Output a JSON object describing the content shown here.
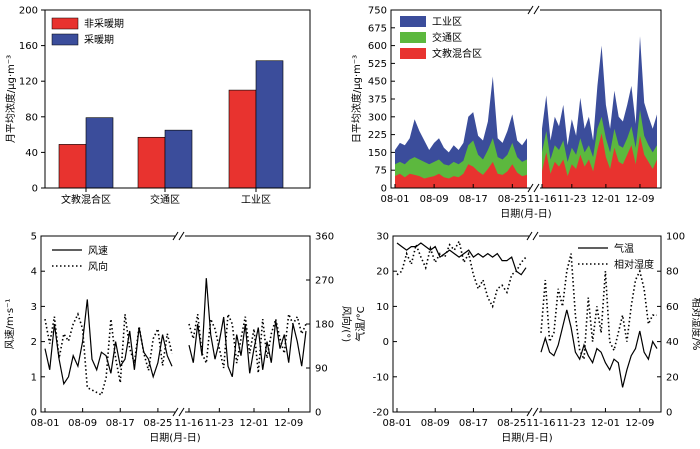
{
  "chart_data": [
    {
      "type": "bar",
      "ylabel": "月平均浓度/μg·m⁻³",
      "ylim": [
        0,
        200
      ],
      "yticks": [
        "0",
        "40",
        "80",
        "120",
        "160",
        "200"
      ],
      "categories": [
        "文教混合区",
        "交通区",
        "工业区"
      ],
      "legend_position": "top-left",
      "series": [
        {
          "name": "非采暖期",
          "color": "#e8332f",
          "values": [
            49,
            57,
            110
          ]
        },
        {
          "name": "采暖期",
          "color": "#3b4d9b",
          "values": [
            79,
            65,
            143
          ]
        }
      ]
    },
    {
      "type": "area",
      "ylabel": "日平均浓度/μg·m⁻³",
      "xlabel": "日期(月-日)",
      "ylim": [
        0,
        750
      ],
      "yticks": [
        "0",
        "75",
        "150",
        "225",
        "300",
        "375",
        "450",
        "525",
        "600",
        "675",
        "750"
      ],
      "xticks": [
        "08-01",
        "08-09",
        "08-17",
        "08-25",
        "11-16",
        "11-23",
        "12-01",
        "12-09"
      ],
      "legend_position": "top-left",
      "series": [
        {
          "name": "工业区",
          "color": "#3b4d9b",
          "values_part1": [
            160,
            190,
            180,
            210,
            290,
            240,
            200,
            160,
            190,
            210,
            170,
            150,
            180,
            160,
            190,
            300,
            320,
            220,
            200,
            280,
            470,
            210,
            190,
            240,
            310,
            200,
            180,
            210
          ],
          "values_part2": [
            250,
            390,
            200,
            300,
            260,
            350,
            180,
            290,
            220,
            380,
            250,
            300,
            200,
            430,
            600,
            350,
            250,
            410,
            300,
            280,
            350,
            430,
            270,
            640,
            360,
            300,
            250,
            310
          ]
        },
        {
          "name": "交通区",
          "color": "#5cb83e",
          "values_part1": [
            100,
            110,
            100,
            120,
            130,
            120,
            110,
            100,
            110,
            120,
            100,
            95,
            110,
            100,
            115,
            180,
            200,
            140,
            120,
            160,
            210,
            130,
            120,
            140,
            190,
            130,
            110,
            120
          ],
          "values_part2": [
            150,
            240,
            120,
            180,
            160,
            200,
            110,
            170,
            140,
            210,
            150,
            180,
            130,
            250,
            300,
            210,
            150,
            250,
            180,
            170,
            210,
            260,
            170,
            330,
            220,
            180,
            150,
            180
          ]
        },
        {
          "name": "文教混合区",
          "color": "#e8332f",
          "values_part1": [
            50,
            60,
            45,
            60,
            55,
            50,
            40,
            45,
            50,
            60,
            45,
            40,
            50,
            45,
            60,
            100,
            90,
            70,
            55,
            80,
            110,
            60,
            55,
            70,
            100,
            65,
            50,
            55
          ],
          "values_part2": [
            70,
            150,
            60,
            110,
            90,
            120,
            50,
            100,
            80,
            140,
            90,
            120,
            70,
            160,
            230,
            130,
            80,
            170,
            110,
            100,
            140,
            180,
            100,
            220,
            140,
            110,
            80,
            120
          ]
        }
      ]
    },
    {
      "type": "line",
      "xlabel": "日期(月-日)",
      "ylabel_left": "风速/m·s⁻¹",
      "ylabel_right": "风向/(°)",
      "ylim_left": [
        0,
        5
      ],
      "ylim_right": [
        0,
        360
      ],
      "yticks_left": [
        "0",
        "1",
        "2",
        "3",
        "4",
        "5"
      ],
      "yticks_right": [
        "0",
        "90",
        "180",
        "270",
        "360"
      ],
      "xticks": [
        "08-01",
        "08-09",
        "08-17",
        "08-25",
        "11-16",
        "11-23",
        "12-01",
        "12-09"
      ],
      "legend_position": "top-left",
      "series": [
        {
          "name": "风速",
          "axis": "left",
          "style": "solid",
          "values_part1": [
            1.8,
            1.2,
            2.5,
            1.5,
            0.8,
            1.0,
            1.6,
            1.3,
            2.0,
            3.2,
            1.5,
            1.2,
            1.7,
            1.6,
            1.1,
            2.0,
            1.3,
            1.5,
            2.3,
            1.2,
            2.4,
            1.7,
            1.5,
            1.0,
            1.4,
            2.2,
            1.6,
            1.3
          ],
          "values_part2": [
            1.9,
            1.4,
            2.5,
            1.6,
            3.8,
            2.2,
            1.5,
            2.0,
            2.7,
            1.3,
            1.0,
            2.2,
            1.6,
            2.5,
            1.1,
            1.8,
            2.4,
            1.2,
            2.0,
            1.4,
            2.6,
            1.8,
            2.2,
            1.4,
            2.5,
            2.0,
            1.3,
            2.3
          ]
        },
        {
          "name": "风向",
          "axis": "right",
          "style": "dotted",
          "values_part1": [
            190,
            140,
            195,
            110,
            160,
            145,
            180,
            200,
            170,
            50,
            45,
            40,
            35,
            70,
            190,
            110,
            60,
            200,
            130,
            100,
            175,
            120,
            85,
            150,
            170,
            95,
            160,
            120
          ],
          "values_part2": [
            180,
            150,
            200,
            120,
            100,
            190,
            170,
            130,
            90,
            200,
            180,
            100,
            150,
            195,
            120,
            170,
            80,
            190,
            110,
            160,
            190,
            150,
            120,
            200,
            180,
            195,
            160,
            180
          ]
        }
      ]
    },
    {
      "type": "line",
      "xlabel": "日期(月-日)",
      "ylabel_left": "气温/°C",
      "ylabel_right": "相对湿度/%",
      "ylim_left": [
        -20,
        30
      ],
      "ylim_right": [
        0,
        100
      ],
      "yticks_left": [
        "-20",
        "-10",
        "0",
        "10",
        "20",
        "30"
      ],
      "yticks_right": [
        "0",
        "20",
        "40",
        "60",
        "80",
        "100"
      ],
      "xticks": [
        "08-01",
        "08-09",
        "08-17",
        "08-25",
        "11-16",
        "11-23",
        "12-01",
        "12-09"
      ],
      "legend_position": "top-right",
      "series": [
        {
          "name": "气温",
          "axis": "left",
          "style": "solid",
          "values_part1": [
            28,
            27,
            26,
            27,
            27,
            28,
            27,
            26,
            27,
            24,
            25,
            26,
            25,
            24,
            25,
            26,
            24,
            25,
            24,
            25,
            24,
            25,
            23,
            23,
            24,
            20,
            19,
            21
          ],
          "values_part2": [
            -3,
            1,
            -3,
            -4,
            -1,
            4,
            9,
            4,
            -3,
            -5,
            -1,
            -4,
            -6,
            -2,
            -3,
            -6,
            -8,
            -5,
            -6,
            -13,
            -8,
            -4,
            -2,
            3,
            -3,
            -5,
            0,
            -2
          ]
        },
        {
          "name": "相对湿度",
          "axis": "right",
          "style": "dotted",
          "values_part1": [
            78,
            80,
            90,
            84,
            95,
            88,
            82,
            93,
            85,
            90,
            88,
            95,
            92,
            97,
            85,
            90,
            78,
            70,
            75,
            65,
            60,
            70,
            72,
            68,
            78,
            80,
            85,
            88
          ],
          "values_part2": [
            45,
            75,
            40,
            45,
            70,
            60,
            80,
            90,
            55,
            35,
            30,
            65,
            40,
            60,
            45,
            80,
            40,
            35,
            45,
            55,
            40,
            60,
            75,
            80,
            70,
            50,
            55,
            55
          ]
        }
      ]
    }
  ]
}
